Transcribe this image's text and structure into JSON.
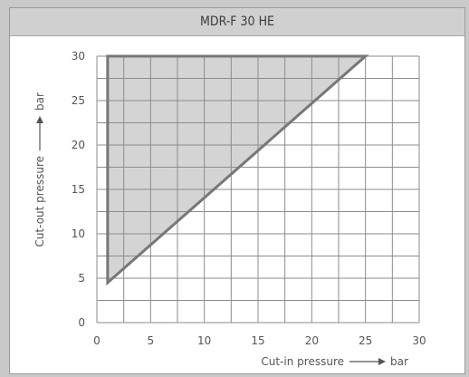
{
  "chart_data": {
    "type": "area",
    "title": "MDR-F 30 HE",
    "xlabel": "Cut-in pressure",
    "xunit": "bar",
    "ylabel": "Cut-out pressure",
    "yunit": "bar",
    "xlim": [
      0,
      30
    ],
    "ylim": [
      0,
      30
    ],
    "xticks": [
      "0",
      "5",
      "10",
      "15",
      "20",
      "25",
      "30"
    ],
    "yticks": [
      "0",
      "5",
      "10",
      "15",
      "20",
      "25",
      "30"
    ],
    "grid": true,
    "region": {
      "x": [
        1,
        1,
        25
      ],
      "y": [
        4.5,
        30,
        30
      ]
    },
    "colors": {
      "fill": "#d4d4d4",
      "outline": "#777777",
      "grid": "#8c8c8c"
    }
  }
}
